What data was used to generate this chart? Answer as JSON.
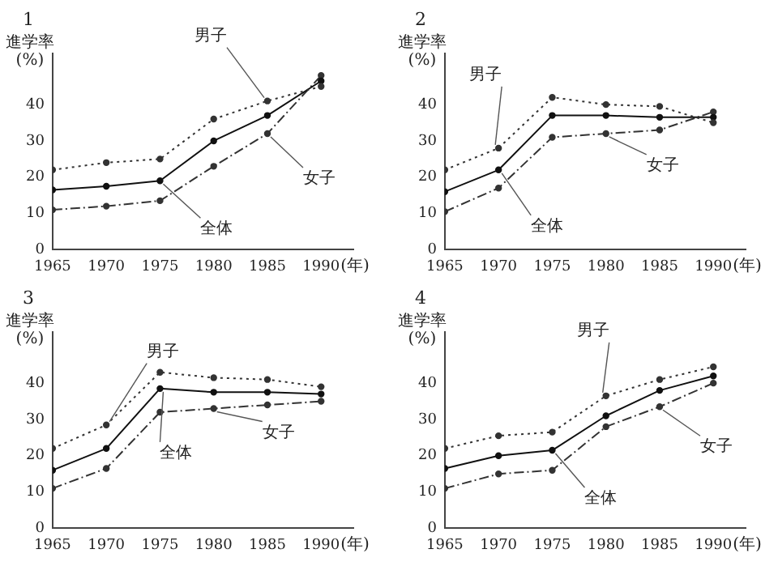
{
  "chart_data": [
    {
      "type": "line",
      "title": "1",
      "ylabel": "進学率\n(%)",
      "xlabel": "(年)",
      "x": [
        1965,
        1970,
        1975,
        1980,
        1985,
        1990
      ],
      "xlim": [
        1965,
        1993
      ],
      "xticks": [
        1965,
        1970,
        1975,
        1980,
        1985,
        1990
      ],
      "ylim": [
        0,
        54
      ],
      "yticks": [
        0,
        10,
        20,
        30,
        40
      ],
      "grid": false,
      "legend": false,
      "marker": "circle",
      "series": [
        {
          "name": "男子",
          "color": "#333333",
          "line_style": "dotted",
          "values": [
            22,
            24,
            25,
            36,
            41,
            45
          ]
        },
        {
          "name": "全体",
          "color": "#111111",
          "line_style": "solid",
          "values": [
            16.5,
            17.5,
            19,
            30,
            37,
            46.5
          ]
        },
        {
          "name": "女子",
          "color": "#333333",
          "line_style": "dashed",
          "values": [
            11,
            12,
            13.5,
            23,
            32,
            48
          ]
        }
      ]
    },
    {
      "type": "line",
      "title": "2",
      "ylabel": "進学率\n(%)",
      "xlabel": "(年)",
      "x": [
        1965,
        1970,
        1975,
        1980,
        1985,
        1990
      ],
      "xlim": [
        1965,
        1993
      ],
      "xticks": [
        1965,
        1970,
        1975,
        1980,
        1985,
        1990
      ],
      "ylim": [
        0,
        54
      ],
      "yticks": [
        0,
        10,
        20,
        30,
        40
      ],
      "grid": false,
      "legend": false,
      "marker": "circle",
      "series": [
        {
          "name": "男子",
          "color": "#333333",
          "line_style": "dotted",
          "values": [
            22,
            28,
            42,
            40,
            39.5,
            35
          ]
        },
        {
          "name": "全体",
          "color": "#111111",
          "line_style": "solid",
          "values": [
            16,
            22,
            37,
            37,
            36.5,
            36.5
          ]
        },
        {
          "name": "女子",
          "color": "#333333",
          "line_style": "dashed",
          "values": [
            10.5,
            17,
            31,
            32,
            33,
            38
          ]
        }
      ]
    },
    {
      "type": "line",
      "title": "3",
      "ylabel": "進学率\n(%)",
      "xlabel": "(年)",
      "x": [
        1965,
        1970,
        1975,
        1980,
        1985,
        1990
      ],
      "xlim": [
        1965,
        1993
      ],
      "xticks": [
        1965,
        1970,
        1975,
        1980,
        1985,
        1990
      ],
      "ylim": [
        0,
        54
      ],
      "yticks": [
        0,
        10,
        20,
        30,
        40
      ],
      "grid": false,
      "legend": false,
      "marker": "circle",
      "series": [
        {
          "name": "男子",
          "color": "#333333",
          "line_style": "dotted",
          "values": [
            22,
            28.5,
            43,
            41.5,
            41,
            39
          ]
        },
        {
          "name": "全体",
          "color": "#111111",
          "line_style": "solid",
          "values": [
            16,
            22,
            38.5,
            37.5,
            37.5,
            37
          ]
        },
        {
          "name": "女子",
          "color": "#333333",
          "line_style": "dashed",
          "values": [
            11,
            16.5,
            32,
            33,
            34,
            35
          ]
        }
      ]
    },
    {
      "type": "line",
      "title": "4",
      "ylabel": "進学率\n(%)",
      "xlabel": "(年)",
      "x": [
        1965,
        1970,
        1975,
        1980,
        1985,
        1990
      ],
      "xlim": [
        1965,
        1993
      ],
      "xticks": [
        1965,
        1970,
        1975,
        1980,
        1985,
        1990
      ],
      "ylim": [
        0,
        54
      ],
      "yticks": [
        0,
        10,
        20,
        30,
        40
      ],
      "grid": false,
      "legend": false,
      "marker": "circle",
      "series": [
        {
          "name": "男子",
          "color": "#333333",
          "line_style": "dotted",
          "values": [
            22,
            25.5,
            26.5,
            36.5,
            41,
            44.5
          ]
        },
        {
          "name": "全体",
          "color": "#111111",
          "line_style": "solid",
          "values": [
            16.5,
            20,
            21.5,
            31,
            38,
            42
          ]
        },
        {
          "name": "女子",
          "color": "#333333",
          "line_style": "dashed",
          "values": [
            11,
            15,
            16,
            28,
            33.5,
            40
          ]
        }
      ]
    }
  ]
}
